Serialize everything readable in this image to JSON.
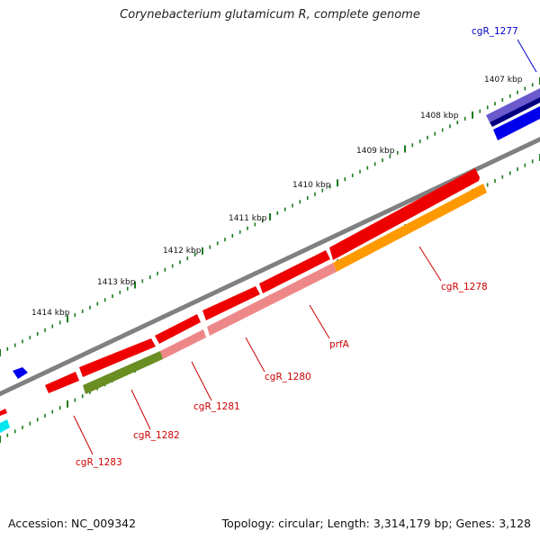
{
  "title": "Corynebacterium glutamicum R, complete genome",
  "footer": {
    "accession": "Accession: NC_009342",
    "topology": "Topology: circular; Length: 3,314,179 bp; Genes: 3,128"
  },
  "ticks": [
    "1407 kbp",
    "1408 kbp",
    "1409 kbp",
    "1410 kbp",
    "1411 kbp",
    "1412 kbp",
    "1413 kbp",
    "1414 kbp"
  ],
  "gene_labels": [
    {
      "name": "cgR_1277",
      "color": "#0000cc"
    },
    {
      "name": "cgR_1278",
      "color": "#cc0000"
    },
    {
      "name": "prfA",
      "color": "#cc0000"
    },
    {
      "name": "cgR_1280",
      "color": "#cc0000"
    },
    {
      "name": "cgR_1281",
      "color": "#cc0000"
    },
    {
      "name": "cgR_1282",
      "color": "#cc0000"
    },
    {
      "name": "cgR_1283",
      "color": "#cc0000"
    }
  ],
  "colors": {
    "backbone": "#808080",
    "tick": "#1a7a1a",
    "gene_red": "#ee0000",
    "gene_pink": "#ee8888",
    "gene_orange": "#ff9900",
    "gene_olive": "#6b8e23",
    "gene_blue": "#0000ee",
    "gene_purple": "#6a5acd",
    "gene_navy": "#000080",
    "gene_cyan": "#00e5ee"
  }
}
